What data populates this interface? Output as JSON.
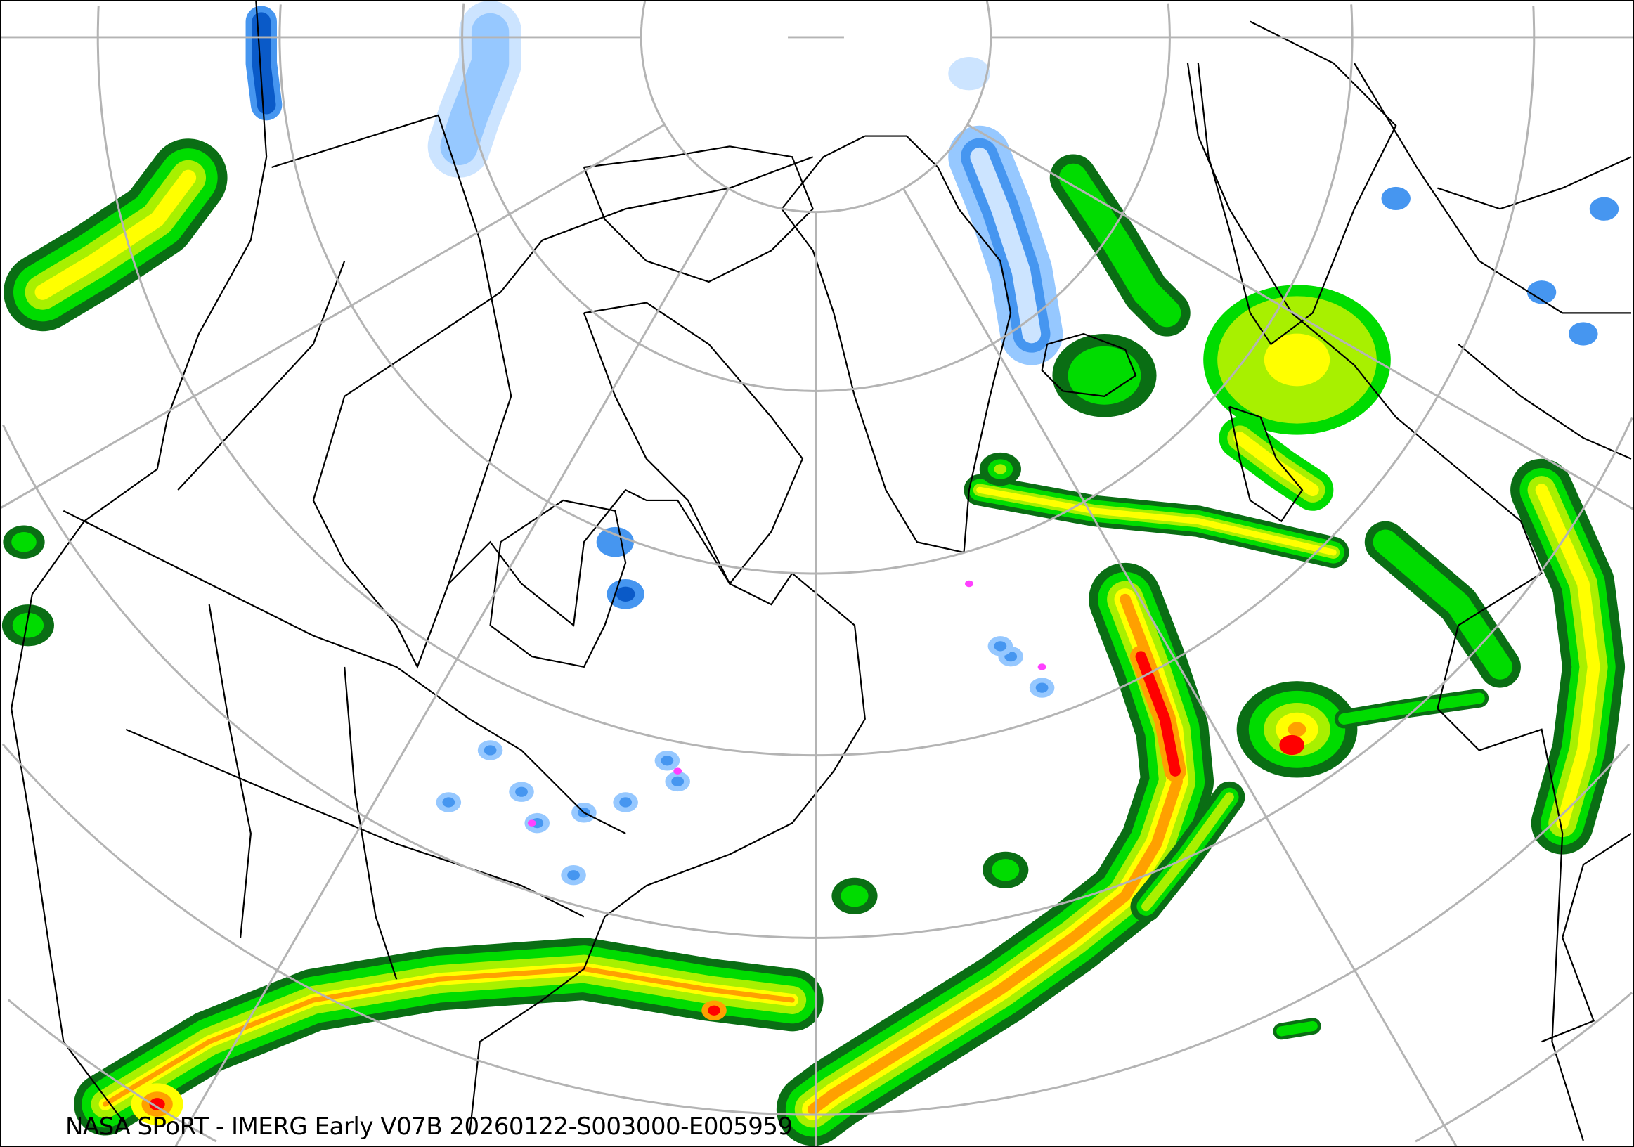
{
  "map": {
    "caption": "NASA SPoRT - IMERG Early V07B 20260122-S003000-E005959",
    "projection": "north polar stereographic",
    "graticule_color": "#b4b4b4",
    "boundary_color": "#000000",
    "background": "#ffffff",
    "rain_colors": [
      "#0a6e14",
      "#00dc00",
      "#a8f000",
      "#ffff00",
      "#ffa000",
      "#ff0000",
      "#ff40ff"
    ],
    "snow_colors": [
      "#cce4ff",
      "#96c8ff",
      "#4696f0",
      "#0a5ac8"
    ]
  }
}
